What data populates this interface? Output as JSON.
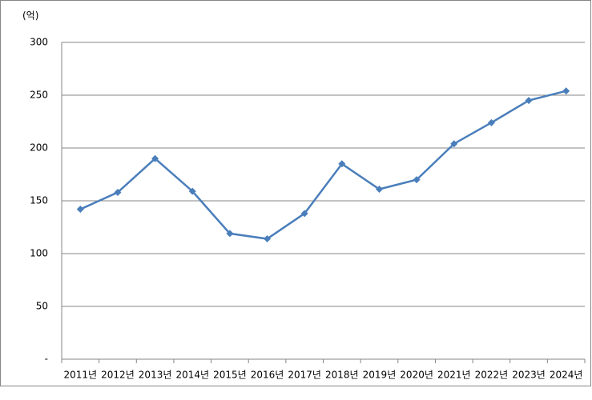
{
  "chart_data": {
    "type": "line",
    "y_label": "(억)",
    "categories": [
      "2011년",
      "2012년",
      "2013년",
      "2014년",
      "2015년",
      "2016년",
      "2017년",
      "2018년",
      "2019년",
      "2020년",
      "2021년",
      "2022년",
      "2023년",
      "2024년"
    ],
    "series": [
      {
        "color": "#4a7ebb",
        "values": [
          142,
          158,
          190,
          159,
          119,
          114,
          138,
          185,
          161,
          170,
          204,
          224,
          245,
          254
        ]
      }
    ],
    "ylim": [
      0,
      300
    ],
    "yticks": [
      {
        "value": 0,
        "label": "-"
      },
      50,
      100,
      150,
      200,
      250,
      300
    ],
    "grid": true
  }
}
